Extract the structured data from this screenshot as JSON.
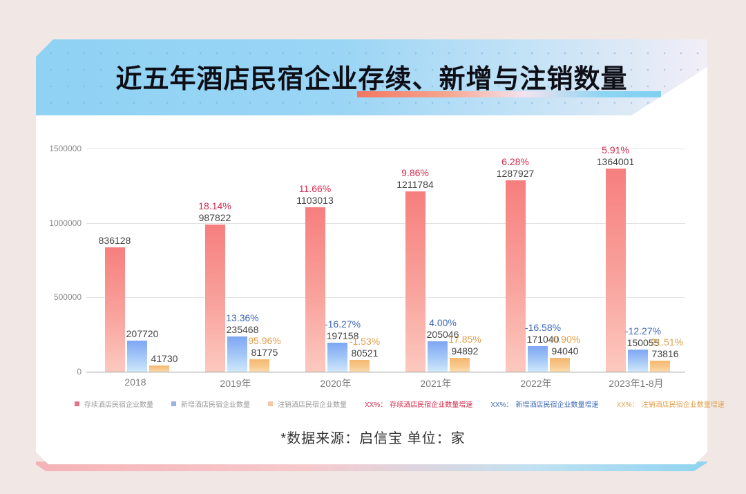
{
  "title": "近五年酒店民宿企业存续、新增与注销数量",
  "source_note": "*数据来源：启信宝   单位：家",
  "colors": {
    "existing": "#f67f7e",
    "new": "#7ea6f4",
    "cancelled": "#f5b870",
    "existing_growth": "#d42b4b",
    "new_growth": "#3e68b8",
    "cancelled_growth": "#e0a04e",
    "header_bg": "#8fd2f4",
    "page_bg": "#f1e7e4"
  },
  "legend": [
    {
      "label": "存续酒店民宿企业数量",
      "color": "#e8728a",
      "type": "swatch"
    },
    {
      "label": "新增酒店民宿企业数量",
      "color": "#9bb3e0",
      "type": "swatch"
    },
    {
      "label": "注销酒店民宿企业数量",
      "color": "#f0c7a8",
      "type": "swatch"
    },
    {
      "prefix": "XX%：",
      "label": "存续酒店民宿企业数量增速",
      "color": "#d42b4b",
      "type": "text"
    },
    {
      "prefix": "XX%：",
      "label": "新增酒店民宿企业数量增速",
      "color": "#3e68b8",
      "type": "text"
    },
    {
      "prefix": "XX%：",
      "label": "注销酒店民宿企业数量增速",
      "color": "#e0a04e",
      "type": "text"
    }
  ],
  "chart_data": {
    "type": "bar",
    "title": "近五年酒店民宿企业存续、新增与注销数量",
    "xlabel": "",
    "ylabel": "",
    "unit": "家",
    "ylim": [
      0,
      1500000
    ],
    "yticks": [
      "0",
      "500000",
      "1000000",
      "1500000"
    ],
    "grid": true,
    "legend_position": "bottom",
    "categories": [
      "2018",
      "2019年",
      "2020年",
      "2021年",
      "2022年",
      "2023年1-8月"
    ],
    "series": [
      {
        "name": "存续酒店民宿企业数量",
        "values": [
          836128,
          987822,
          1103013,
          1211784,
          1287927,
          1364001
        ],
        "growth": [
          "",
          "18.14%",
          "11.66%",
          "9.86%",
          "6.28%",
          "5.91%"
        ]
      },
      {
        "name": "新增酒店民宿企业数量",
        "values": [
          207720,
          235468,
          197158,
          205046,
          171040,
          150055
        ],
        "growth": [
          "",
          "13.36%",
          "-16.27%",
          "4.00%",
          "-16.58%",
          "-12.27%"
        ]
      },
      {
        "name": "注销酒店民宿企业数量",
        "values": [
          41730,
          81775,
          80521,
          94892,
          94040,
          73816
        ],
        "growth": [
          "",
          "95.96%",
          "-1.53%",
          "17.85%",
          "-0.90%",
          "-21.51%"
        ]
      }
    ]
  }
}
